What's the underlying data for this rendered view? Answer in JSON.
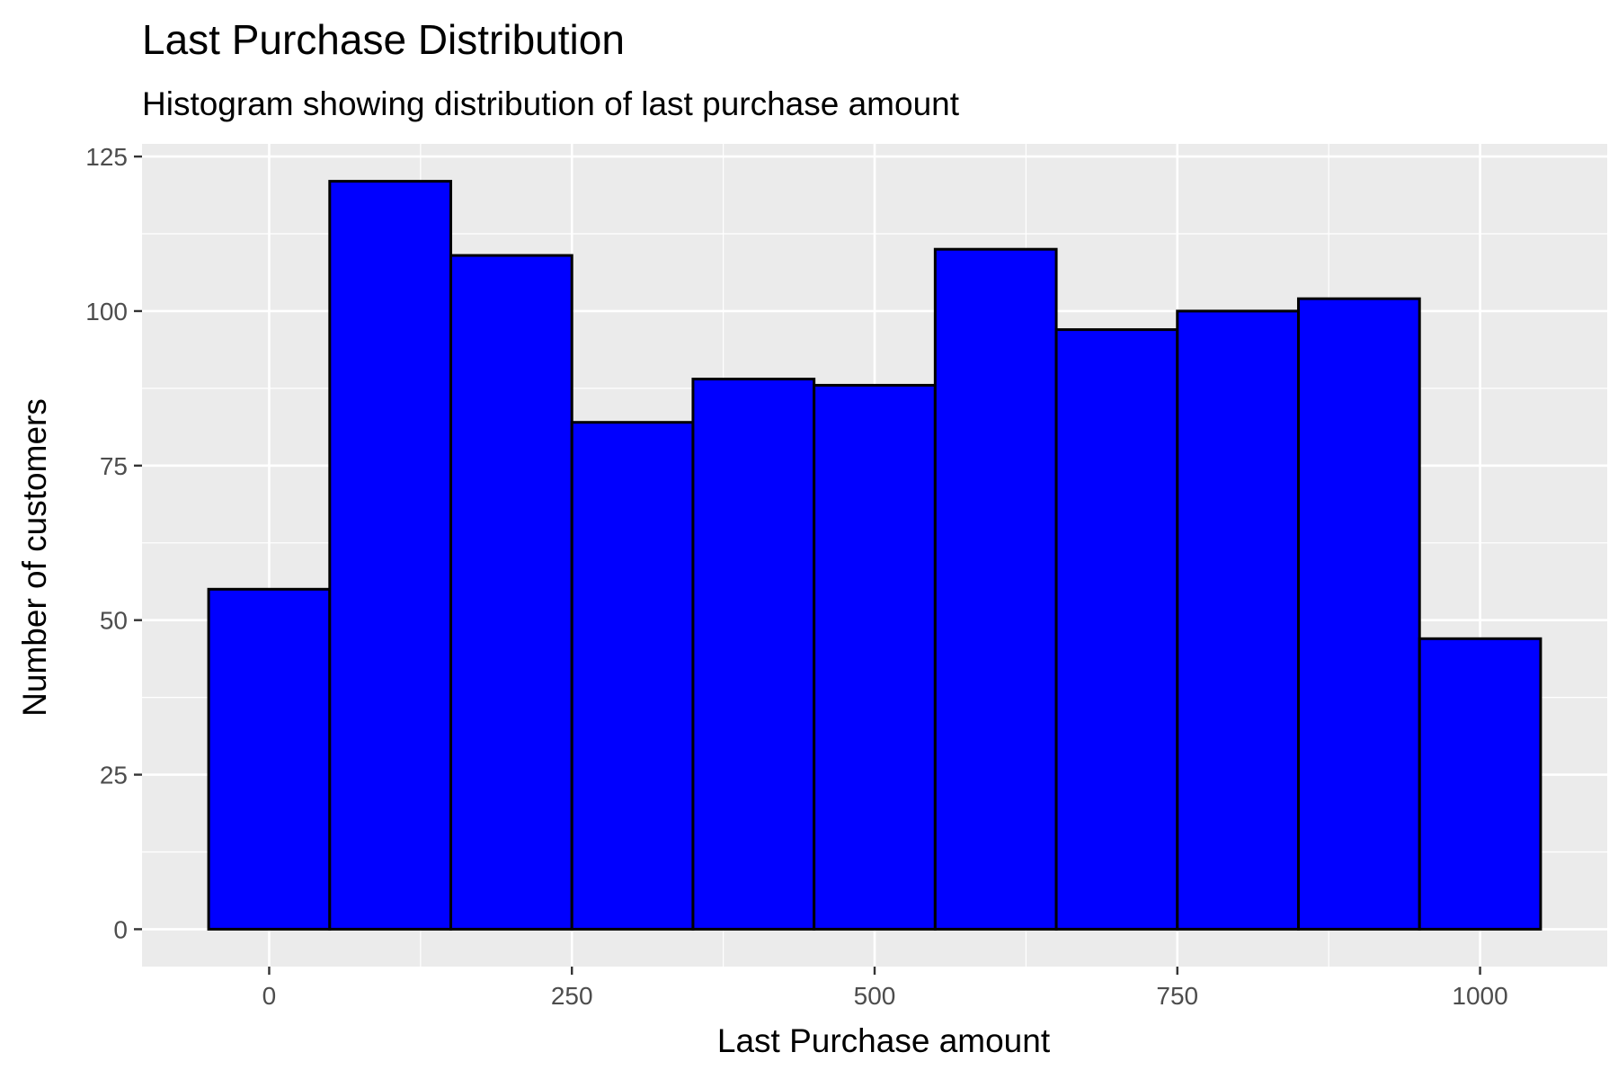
{
  "chart_data": {
    "type": "histogram",
    "title": "Last Purchase Distribution",
    "subtitle": "Histogram showing distribution of last purchase amount",
    "xlabel": "Last Purchase amount",
    "ylabel": "Number of customers",
    "bin_width": 100,
    "bins": [
      {
        "start": -50,
        "end": 50,
        "count": 55
      },
      {
        "start": 50,
        "end": 150,
        "count": 121
      },
      {
        "start": 150,
        "end": 250,
        "count": 109
      },
      {
        "start": 250,
        "end": 350,
        "count": 82
      },
      {
        "start": 350,
        "end": 450,
        "count": 89
      },
      {
        "start": 450,
        "end": 550,
        "count": 88
      },
      {
        "start": 550,
        "end": 650,
        "count": 110
      },
      {
        "start": 650,
        "end": 750,
        "count": 97
      },
      {
        "start": 750,
        "end": 850,
        "count": 100
      },
      {
        "start": 850,
        "end": 950,
        "count": 102
      },
      {
        "start": 950,
        "end": 1050,
        "count": 47
      }
    ],
    "xlim": [
      -105,
      1105
    ],
    "ylim": [
      -6.05,
      127.05
    ],
    "x_ticks": [
      0,
      250,
      500,
      750,
      1000
    ],
    "x_tick_labels": [
      "0",
      "250",
      "500",
      "750",
      "1000"
    ],
    "y_ticks": [
      0,
      25,
      50,
      75,
      100,
      125
    ],
    "y_tick_labels": [
      "0",
      "25",
      "50",
      "75",
      "100",
      "125"
    ],
    "grid": true,
    "colors": {
      "fill": "#0000FF",
      "outline": "#000000",
      "panel": "#EBEBEB",
      "grid": "#FFFFFF"
    }
  }
}
